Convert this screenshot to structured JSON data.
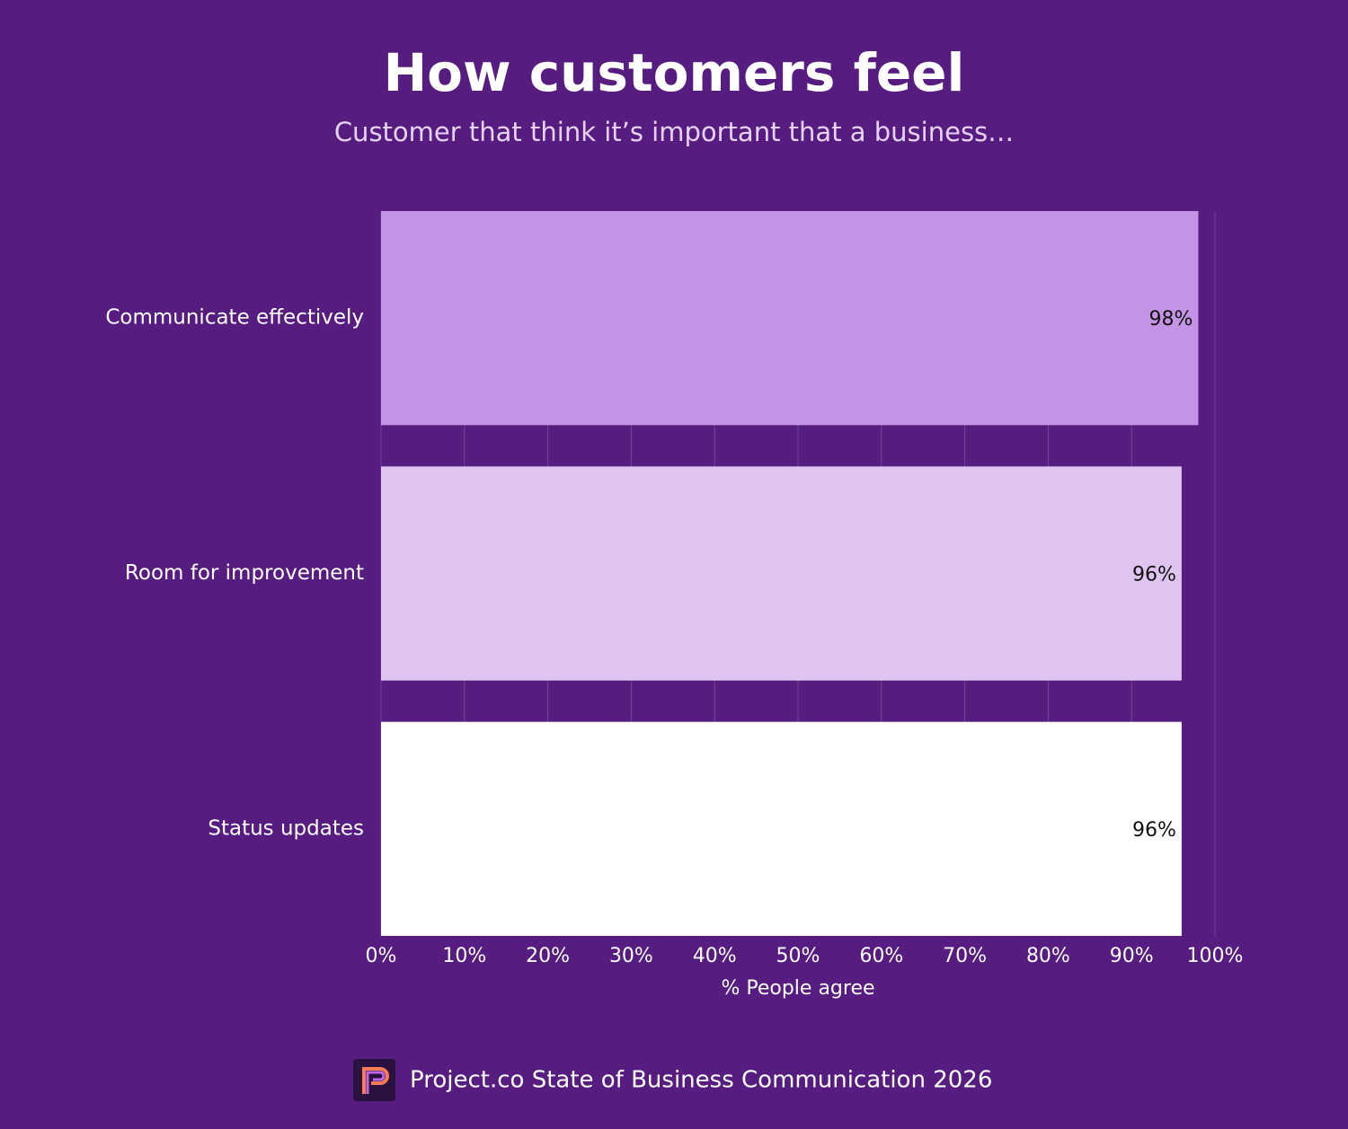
{
  "chart_data": {
    "type": "bar",
    "orientation": "horizontal",
    "title": "How customers feel",
    "subtitle": "Customer that think it’s important that a business…",
    "categories": [
      "Communicate effectively",
      "Room for improvement",
      "Status updates"
    ],
    "values": [
      98,
      96,
      96
    ],
    "value_labels": [
      "98%",
      "96%",
      "96%"
    ],
    "colors": [
      "#c493e6",
      "#dfc4f2",
      "#ffffff"
    ],
    "xlim": [
      0,
      100
    ],
    "xticks": [
      {
        "value": 0,
        "label": "0%"
      },
      {
        "value": 10,
        "label": "10%"
      },
      {
        "value": 20,
        "label": "20%"
      },
      {
        "value": 30,
        "label": "30%"
      },
      {
        "value": 40,
        "label": "40%"
      },
      {
        "value": 50,
        "label": "50%"
      },
      {
        "value": 60,
        "label": "60%"
      },
      {
        "value": 70,
        "label": "70%"
      },
      {
        "value": 80,
        "label": "80%"
      },
      {
        "value": 90,
        "label": "90%"
      },
      {
        "value": 100,
        "label": "100%"
      }
    ],
    "xlabel": "% People agree",
    "grid": true,
    "source": "Project.co State of Business Communication 2026"
  }
}
